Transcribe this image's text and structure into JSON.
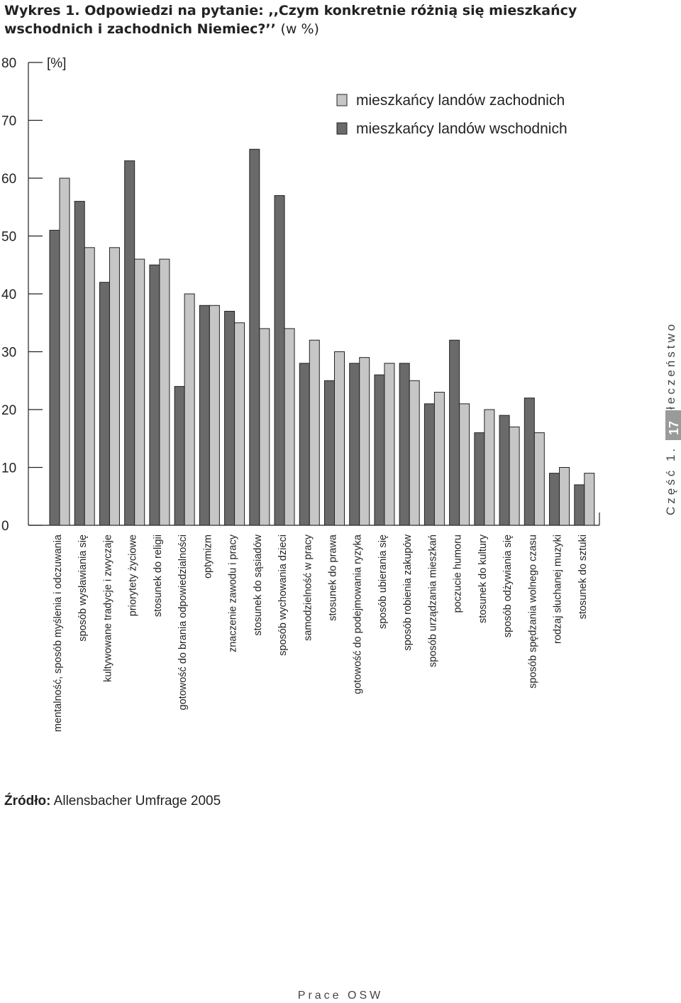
{
  "title": {
    "main": "Wykres 1. Odpowiedzi na pytanie: ,,Czym konkretnie różnią się mieszkańcy wschodnich i zachodnich Niemiec?’’",
    "unit": "(w %)"
  },
  "source": {
    "label": "Źródło:",
    "text": "Allensbacher Umfrage 2005"
  },
  "sidebar": {
    "section": "Część 1. Społeczeństwo",
    "page_number": "17"
  },
  "footer": "Prace OSW",
  "colors": {
    "east": "#6a6a6a",
    "west": "#c6c6c6",
    "stroke": "#222222"
  },
  "chart_data": {
    "type": "bar",
    "ylabel": "[%]",
    "ylim": [
      0,
      80
    ],
    "yticks": [
      "0",
      "10",
      "20",
      "30",
      "40",
      "50",
      "60",
      "70",
      "80"
    ],
    "legend_position": "top-right",
    "categories": [
      "mentalność, sposób myślenia i odczuwania",
      "sposób wysławiania się",
      "kultywowane tradycje i zwyczaje",
      "priorytety życiowe",
      "stosunek do religii",
      "gotowość do brania odpowiedzialności",
      "optymizm",
      "znaczenie zawodu i pracy",
      "stosunek do sąsiadów",
      "sposób wychowania dzieci",
      "samodzielność w pracy",
      "stosunek do prawa",
      "gotowość do podejmowania ryzyka",
      "sposób ubierania się",
      "sposób robienia zakupów",
      "sposób urządzania mieszkań",
      "poczucie humoru",
      "stosunek do kultury",
      "sposób odżywiania się",
      "sposób spędzania wolnego czasu",
      "rodzaj słuchanej muzyki",
      "stosunek do sztuki"
    ],
    "series": [
      {
        "name": "mieszkańcy landów wschodnich",
        "values": [
          51,
          56,
          42,
          63,
          45,
          24,
          38,
          37,
          65,
          57,
          28,
          25,
          28,
          26,
          28,
          21,
          32,
          16,
          19,
          22,
          9,
          7
        ]
      },
      {
        "name": "mieszkańcy landów zachodnich",
        "values": [
          60,
          48,
          48,
          46,
          46,
          40,
          38,
          35,
          34,
          34,
          32,
          30,
          29,
          28,
          25,
          23,
          21,
          20,
          17,
          16,
          10,
          9
        ]
      }
    ]
  }
}
